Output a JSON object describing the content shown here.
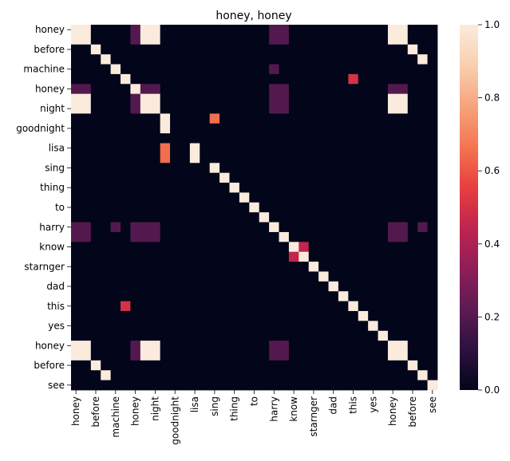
{
  "chart_data": {
    "type": "heatmap",
    "title": "honey, honey",
    "xlabel": "",
    "ylabel": "",
    "x_tick_labels": [
      "honey",
      "before",
      "machine",
      "honey",
      "night",
      "goodnight",
      "lisa",
      "sing",
      "thing",
      "to",
      "harry",
      "know",
      "starnger",
      "dad",
      "this",
      "yes",
      "honey",
      "before",
      "see"
    ],
    "y_tick_labels": [
      "honey",
      "before",
      "machine",
      "honey",
      "night",
      "goodnight",
      "lisa",
      "sing",
      "thing",
      "to",
      "harry",
      "know",
      "starnger",
      "dad",
      "this",
      "yes",
      "honey",
      "before",
      "see"
    ],
    "columns": [
      "honey",
      "honey",
      "before",
      "before",
      "machine",
      "machine",
      "honey",
      "honey",
      "night",
      "night",
      "goodnight",
      "goodnight",
      "lisa",
      "lisa",
      "sing",
      "sing",
      "thing",
      "thing",
      "to",
      "to",
      "harry",
      "harry",
      "know",
      "know",
      "starnger",
      "starnger",
      "dad",
      "dad",
      "this",
      "this",
      "yes",
      "yes",
      "honey",
      "honey",
      "before",
      "before",
      "see"
    ],
    "rows": [
      "honey",
      "honey",
      "before",
      "before",
      "machine",
      "machine",
      "honey",
      "honey",
      "night",
      "night",
      "goodnight",
      "goodnight",
      "lisa",
      "lisa",
      "sing",
      "sing",
      "thing",
      "thing",
      "to",
      "to",
      "harry",
      "harry",
      "know",
      "know",
      "starnger",
      "starnger",
      "dad",
      "dad",
      "this",
      "this",
      "yes",
      "yes",
      "honey",
      "honey",
      "before",
      "before",
      "see"
    ],
    "values": [
      [
        1,
        1,
        0,
        0,
        0,
        0,
        0.2,
        1,
        1,
        0,
        0,
        0,
        0,
        0,
        0,
        0,
        0,
        0,
        0,
        0,
        0.2,
        0.2,
        0,
        0,
        0,
        0,
        0,
        0,
        0,
        0,
        0,
        0,
        1,
        1,
        0,
        0,
        0
      ],
      [
        1,
        1,
        0,
        0,
        0,
        0,
        0.2,
        1,
        1,
        0,
        0,
        0,
        0,
        0,
        0,
        0,
        0,
        0,
        0,
        0,
        0.2,
        0.2,
        0,
        0,
        0,
        0,
        0,
        0,
        0,
        0,
        0,
        0,
        1,
        1,
        0,
        0,
        0
      ],
      [
        0,
        0,
        1,
        0,
        0,
        0,
        0,
        0,
        0,
        0,
        0,
        0,
        0,
        0,
        0,
        0,
        0,
        0,
        0,
        0,
        0,
        0,
        0,
        0,
        0,
        0,
        0,
        0,
        0,
        0,
        0,
        0,
        0,
        0,
        1,
        0,
        0
      ],
      [
        0,
        0,
        0,
        1,
        0,
        0,
        0,
        0,
        0,
        0,
        0,
        0,
        0,
        0,
        0,
        0,
        0,
        0,
        0,
        0,
        0,
        0,
        0,
        0,
        0,
        0,
        0,
        0,
        0,
        0,
        0,
        0,
        0,
        0,
        0,
        1,
        0
      ],
      [
        0,
        0,
        0,
        0,
        1,
        0,
        0,
        0,
        0,
        0,
        0,
        0,
        0,
        0,
        0,
        0,
        0,
        0,
        0,
        0,
        0.2,
        0,
        0,
        0,
        0,
        0,
        0,
        0,
        0,
        0,
        0,
        0,
        0,
        0,
        0,
        0,
        0
      ],
      [
        0,
        0,
        0,
        0,
        0,
        1,
        0,
        0,
        0,
        0,
        0,
        0,
        0,
        0,
        0,
        0,
        0,
        0,
        0,
        0,
        0,
        0,
        0,
        0,
        0,
        0,
        0,
        0,
        0.5,
        0,
        0,
        0,
        0,
        0,
        0,
        0,
        0
      ],
      [
        0.2,
        0.2,
        0,
        0,
        0,
        0,
        1,
        0.2,
        0.2,
        0,
        0,
        0,
        0,
        0,
        0,
        0,
        0,
        0,
        0,
        0,
        0.2,
        0.2,
        0,
        0,
        0,
        0,
        0,
        0,
        0,
        0,
        0,
        0,
        0.2,
        0.2,
        0,
        0,
        0
      ],
      [
        1,
        1,
        0,
        0,
        0,
        0,
        0.2,
        1,
        1,
        0,
        0,
        0,
        0,
        0,
        0,
        0,
        0,
        0,
        0,
        0,
        0.2,
        0.2,
        0,
        0,
        0,
        0,
        0,
        0,
        0,
        0,
        0,
        0,
        1,
        1,
        0,
        0,
        0
      ],
      [
        1,
        1,
        0,
        0,
        0,
        0,
        0.2,
        1,
        1,
        0,
        0,
        0,
        0,
        0,
        0,
        0,
        0,
        0,
        0,
        0,
        0.2,
        0.2,
        0,
        0,
        0,
        0,
        0,
        0,
        0,
        0,
        0,
        0,
        1,
        1,
        0,
        0,
        0
      ],
      [
        0,
        0,
        0,
        0,
        0,
        0,
        0,
        0,
        0,
        1,
        0,
        0,
        0,
        0,
        0.65,
        0,
        0,
        0,
        0,
        0,
        0,
        0,
        0,
        0,
        0,
        0,
        0,
        0,
        0,
        0,
        0,
        0,
        0,
        0,
        0,
        0,
        0
      ],
      [
        0,
        0,
        0,
        0,
        0,
        0,
        0,
        0,
        0,
        1,
        0,
        0,
        0,
        0,
        0,
        0,
        0,
        0,
        0,
        0,
        0,
        0,
        0,
        0,
        0,
        0,
        0,
        0,
        0,
        0,
        0,
        0,
        0,
        0,
        0,
        0,
        0
      ],
      [
        0,
        0,
        0,
        0,
        0,
        0,
        0,
        0,
        0,
        0,
        0,
        0,
        0,
        0,
        0,
        0,
        0,
        0,
        0,
        0,
        0,
        0,
        0,
        0,
        0,
        0,
        0,
        0,
        0,
        0,
        0,
        0,
        0,
        0,
        0,
        0,
        0
      ],
      [
        0,
        0,
        0,
        0,
        0,
        0,
        0,
        0,
        0,
        0.65,
        0,
        0,
        1,
        0,
        0,
        0,
        0,
        0,
        0,
        0,
        0,
        0,
        0,
        0,
        0,
        0,
        0,
        0,
        0,
        0,
        0,
        0,
        0,
        0,
        0,
        0,
        0
      ],
      [
        0,
        0,
        0,
        0,
        0,
        0,
        0,
        0,
        0,
        0.65,
        0,
        0,
        1,
        0,
        0,
        0,
        0,
        0,
        0,
        0,
        0,
        0,
        0,
        0,
        0,
        0,
        0,
        0,
        0,
        0,
        0,
        0,
        0,
        0,
        0,
        0,
        0
      ],
      [
        0,
        0,
        0,
        0,
        0,
        0,
        0,
        0,
        0,
        0,
        0,
        0,
        0,
        0,
        1,
        0,
        0,
        0,
        0,
        0,
        0,
        0,
        0,
        0,
        0,
        0,
        0,
        0,
        0,
        0,
        0,
        0,
        0,
        0,
        0,
        0,
        0
      ],
      [
        0,
        0,
        0,
        0,
        0,
        0,
        0,
        0,
        0,
        0,
        0,
        0,
        0,
        0,
        0,
        1,
        0,
        0,
        0,
        0,
        0,
        0,
        0,
        0,
        0,
        0,
        0,
        0,
        0,
        0,
        0,
        0,
        0,
        0,
        0,
        0,
        0
      ],
      [
        0,
        0,
        0,
        0,
        0,
        0,
        0,
        0,
        0,
        0,
        0,
        0,
        0,
        0,
        0,
        0,
        1,
        0,
        0,
        0,
        0,
        0,
        0,
        0,
        0,
        0,
        0,
        0,
        0,
        0,
        0,
        0,
        0,
        0,
        0,
        0,
        0
      ],
      [
        0,
        0,
        0,
        0,
        0,
        0,
        0,
        0,
        0,
        0,
        0,
        0,
        0,
        0,
        0,
        0,
        0,
        1,
        0,
        0,
        0,
        0,
        0,
        0,
        0,
        0,
        0,
        0,
        0,
        0,
        0,
        0,
        0,
        0,
        0,
        0,
        0
      ],
      [
        0,
        0,
        0,
        0,
        0,
        0,
        0,
        0,
        0,
        0,
        0,
        0,
        0,
        0,
        0,
        0,
        0,
        0,
        1,
        0,
        0,
        0,
        0,
        0,
        0,
        0,
        0,
        0,
        0,
        0,
        0,
        0,
        0,
        0,
        0,
        0,
        0
      ],
      [
        0,
        0,
        0,
        0,
        0,
        0,
        0,
        0,
        0,
        0,
        0,
        0,
        0,
        0,
        0,
        0,
        0,
        0,
        0,
        1,
        0,
        0,
        0,
        0,
        0,
        0,
        0,
        0,
        0,
        0,
        0,
        0,
        0,
        0,
        0,
        0,
        0
      ],
      [
        0.2,
        0.2,
        0,
        0,
        0.2,
        0,
        0.2,
        0.2,
        0.2,
        0,
        0,
        0,
        0,
        0,
        0,
        0,
        0,
        0,
        0,
        0,
        1,
        0,
        0,
        0,
        0,
        0,
        0,
        0,
        0,
        0,
        0,
        0,
        0.2,
        0.2,
        0,
        0.2,
        0
      ],
      [
        0.2,
        0.2,
        0,
        0,
        0,
        0,
        0.2,
        0.2,
        0.2,
        0,
        0,
        0,
        0,
        0,
        0,
        0,
        0,
        0,
        0,
        0,
        0,
        1,
        0,
        0,
        0,
        0,
        0,
        0,
        0,
        0,
        0,
        0,
        0.2,
        0.2,
        0,
        0,
        0
      ],
      [
        0,
        0,
        0,
        0,
        0,
        0,
        0,
        0,
        0,
        0,
        0,
        0,
        0,
        0,
        0,
        0,
        0,
        0,
        0,
        0,
        0,
        0,
        1,
        0.45,
        0,
        0,
        0,
        0,
        0,
        0,
        0,
        0,
        0,
        0,
        0,
        0,
        0
      ],
      [
        0,
        0,
        0,
        0,
        0,
        0,
        0,
        0,
        0,
        0,
        0,
        0,
        0,
        0,
        0,
        0,
        0,
        0,
        0,
        0,
        0,
        0,
        0.45,
        1,
        0,
        0,
        0,
        0,
        0,
        0,
        0,
        0,
        0,
        0,
        0,
        0,
        0
      ],
      [
        0,
        0,
        0,
        0,
        0,
        0,
        0,
        0,
        0,
        0,
        0,
        0,
        0,
        0,
        0,
        0,
        0,
        0,
        0,
        0,
        0,
        0,
        0,
        0,
        1,
        0,
        0,
        0,
        0,
        0,
        0,
        0,
        0,
        0,
        0,
        0,
        0
      ],
      [
        0,
        0,
        0,
        0,
        0,
        0,
        0,
        0,
        0,
        0,
        0,
        0,
        0,
        0,
        0,
        0,
        0,
        0,
        0,
        0,
        0,
        0,
        0,
        0,
        0,
        1,
        0,
        0,
        0,
        0,
        0,
        0,
        0,
        0,
        0,
        0,
        0
      ],
      [
        0,
        0,
        0,
        0,
        0,
        0,
        0,
        0,
        0,
        0,
        0,
        0,
        0,
        0,
        0,
        0,
        0,
        0,
        0,
        0,
        0,
        0,
        0,
        0,
        0,
        0,
        1,
        0,
        0,
        0,
        0,
        0,
        0,
        0,
        0,
        0,
        0
      ],
      [
        0,
        0,
        0,
        0,
        0,
        0,
        0,
        0,
        0,
        0,
        0,
        0,
        0,
        0,
        0,
        0,
        0,
        0,
        0,
        0,
        0,
        0,
        0,
        0,
        0,
        0,
        0,
        1,
        0,
        0,
        0,
        0,
        0,
        0,
        0,
        0,
        0
      ],
      [
        0,
        0,
        0,
        0,
        0,
        0.5,
        0,
        0,
        0,
        0,
        0,
        0,
        0,
        0,
        0,
        0,
        0,
        0,
        0,
        0,
        0,
        0,
        0,
        0,
        0,
        0,
        0,
        0,
        1,
        0,
        0,
        0,
        0,
        0,
        0,
        0,
        0
      ],
      [
        0,
        0,
        0,
        0,
        0,
        0,
        0,
        0,
        0,
        0,
        0,
        0,
        0,
        0,
        0,
        0,
        0,
        0,
        0,
        0,
        0,
        0,
        0,
        0,
        0,
        0,
        0,
        0,
        0,
        1,
        0,
        0,
        0,
        0,
        0,
        0,
        0
      ],
      [
        0,
        0,
        0,
        0,
        0,
        0,
        0,
        0,
        0,
        0,
        0,
        0,
        0,
        0,
        0,
        0,
        0,
        0,
        0,
        0,
        0,
        0,
        0,
        0,
        0,
        0,
        0,
        0,
        0,
        0,
        1,
        0,
        0,
        0,
        0,
        0,
        0
      ],
      [
        0,
        0,
        0,
        0,
        0,
        0,
        0,
        0,
        0,
        0,
        0,
        0,
        0,
        0,
        0,
        0,
        0,
        0,
        0,
        0,
        0,
        0,
        0,
        0,
        0,
        0,
        0,
        0,
        0,
        0,
        0,
        1,
        0,
        0,
        0,
        0,
        0
      ],
      [
        1,
        1,
        0,
        0,
        0,
        0,
        0.2,
        1,
        1,
        0,
        0,
        0,
        0,
        0,
        0,
        0,
        0,
        0,
        0,
        0,
        0.2,
        0.2,
        0,
        0,
        0,
        0,
        0,
        0,
        0,
        0,
        0,
        0,
        1,
        1,
        0,
        0,
        0
      ],
      [
        1,
        1,
        0,
        0,
        0,
        0,
        0.2,
        1,
        1,
        0,
        0,
        0,
        0,
        0,
        0,
        0,
        0,
        0,
        0,
        0,
        0.2,
        0.2,
        0,
        0,
        0,
        0,
        0,
        0,
        0,
        0,
        0,
        0,
        1,
        1,
        0,
        0,
        0
      ],
      [
        0,
        0,
        1,
        0,
        0,
        0,
        0,
        0,
        0,
        0,
        0,
        0,
        0,
        0,
        0,
        0,
        0,
        0,
        0,
        0,
        0,
        0,
        0,
        0,
        0,
        0,
        0,
        0,
        0,
        0,
        0,
        0,
        0,
        0,
        1,
        0,
        0
      ],
      [
        0,
        0,
        0,
        1,
        0,
        0,
        0,
        0,
        0,
        0,
        0,
        0,
        0,
        0,
        0,
        0,
        0,
        0,
        0,
        0,
        0,
        0,
        0,
        0,
        0,
        0,
        0,
        0,
        0,
        0,
        0,
        0,
        0,
        0,
        0,
        1,
        0
      ],
      [
        0,
        0,
        0,
        0,
        0,
        0,
        0,
        0,
        0,
        0,
        0,
        0,
        0,
        0,
        0,
        0,
        0,
        0,
        0,
        0,
        0,
        0,
        0,
        0,
        0,
        0,
        0,
        0,
        0,
        0,
        0,
        0,
        0,
        0,
        0,
        0,
        1
      ]
    ],
    "vmin": 0,
    "vmax": 1,
    "colorbar": {
      "ticks": [
        "0.0",
        "0.2",
        "0.4",
        "0.6",
        "0.8",
        "1.0"
      ]
    },
    "colormap": [
      "#03051a",
      "#2d1140",
      "#5d1b52",
      "#8f1e58",
      "#c0244f",
      "#e83f3f",
      "#f37651",
      "#f6a47c",
      "#f9cfb0",
      "#faebdd"
    ]
  }
}
